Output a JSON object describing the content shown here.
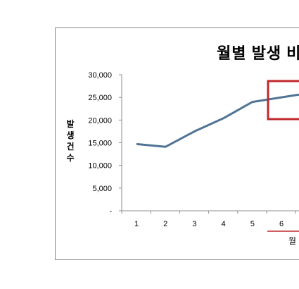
{
  "chart_data": {
    "type": "line",
    "title": "월별 발생 비",
    "xlabel": "월",
    "ylabel": "발생건수",
    "categories": [
      "1",
      "2",
      "3",
      "4",
      "5",
      "6"
    ],
    "series": [
      {
        "values": [
          14700,
          14100,
          17500,
          20400,
          24000,
          25000
        ]
      }
    ],
    "ylim": [
      0,
      30000
    ],
    "y_ticks": [
      "-",
      "5,000",
      "10,000",
      "15,000",
      "20,000",
      "25,000",
      "30,000"
    ],
    "y_tick_values": [
      0,
      5000,
      10000,
      15000,
      20000,
      25000,
      30000
    ],
    "grid": false,
    "colors": {
      "line": "#4f7496",
      "highlight_box": "#c0282d",
      "axis": "#8c8c8c"
    }
  }
}
